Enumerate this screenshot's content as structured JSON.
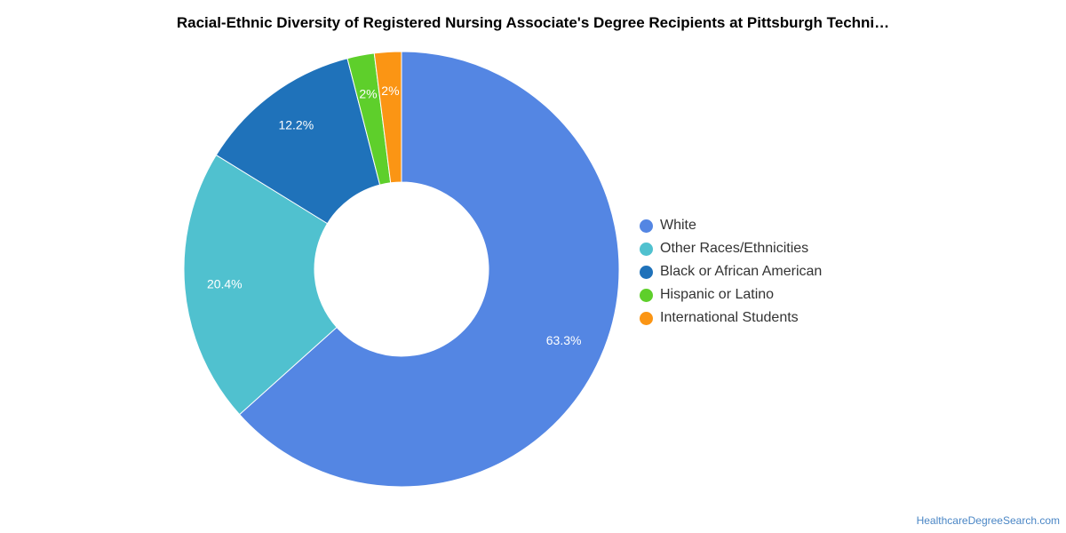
{
  "chart_data": {
    "type": "pie",
    "title": "Racial-Ethnic Diversity of Registered Nursing Associate's Degree Recipients at Pittsburgh Techni…",
    "donut": true,
    "legend_position": "right",
    "slices": [
      {
        "label": "White",
        "value": 63.3,
        "display": "63.3%",
        "color": "#5486e3"
      },
      {
        "label": "Other Races/Ethnicities",
        "value": 20.4,
        "display": "20.4%",
        "color": "#50c1cf"
      },
      {
        "label": "Black or African American",
        "value": 12.2,
        "display": "12.2%",
        "color": "#1f72ba"
      },
      {
        "label": "Hispanic or Latino",
        "value": 2,
        "display": "2%",
        "color": "#5ecf2b"
      },
      {
        "label": "International Students",
        "value": 2,
        "display": "2%",
        "color": "#fb9514"
      }
    ]
  },
  "credit": "HealthcareDegreeSearch.com"
}
